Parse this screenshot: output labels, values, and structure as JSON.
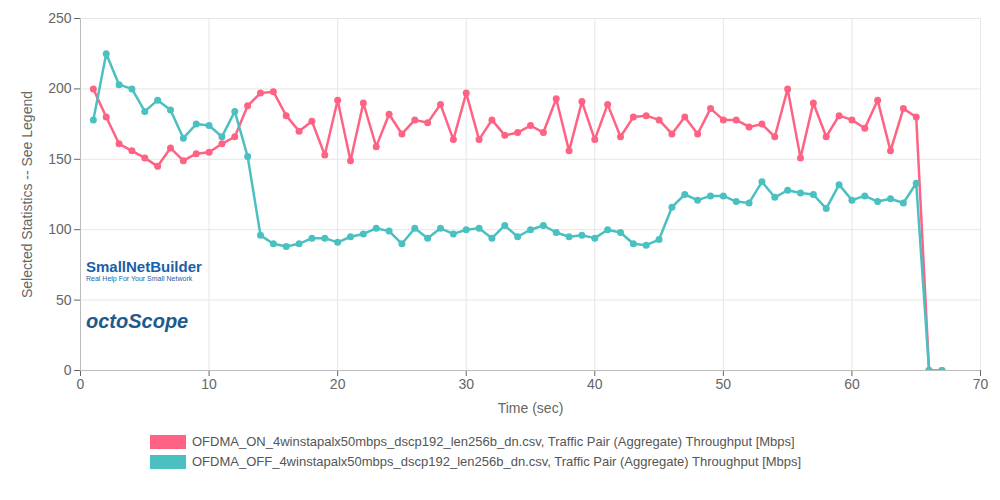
{
  "chart_data": {
    "type": "line",
    "xlabel": "Time (sec)",
    "ylabel": "Selected Statistics -- See Legend",
    "annotations": [
      "SmallNetBuilder",
      "Real Help For Your Small Network",
      "octoScope"
    ],
    "x": [
      1,
      2,
      3,
      4,
      5,
      6,
      7,
      8,
      9,
      10,
      11,
      12,
      13,
      14,
      15,
      16,
      17,
      18,
      19,
      20,
      21,
      22,
      23,
      24,
      25,
      26,
      27,
      28,
      29,
      30,
      31,
      32,
      33,
      34,
      35,
      36,
      37,
      38,
      39,
      40,
      41,
      42,
      43,
      44,
      45,
      46,
      47,
      48,
      49,
      50,
      51,
      52,
      53,
      54,
      55,
      56,
      57,
      58,
      59,
      60,
      61,
      62,
      63,
      64,
      65,
      66,
      67
    ],
    "series": [
      {
        "name": "OFDMA_ON_4winstapalx50mbps_dscp192_len256b_dn.csv, Traffic Pair (Aggregate) Throughput [Mbps]",
        "color": "#ff6384",
        "marker": "circle",
        "values": [
          200,
          180,
          161,
          156,
          151,
          145,
          158,
          149,
          154,
          155,
          161,
          166,
          188,
          197,
          198,
          181,
          170,
          177,
          153,
          192,
          149,
          190,
          159,
          182,
          168,
          178,
          176,
          189,
          164,
          197,
          164,
          178,
          167,
          169,
          174,
          169,
          193,
          156,
          191,
          164,
          189,
          166,
          180,
          181,
          178,
          168,
          180,
          168,
          186,
          178,
          178,
          173,
          175,
          166,
          200,
          151,
          190,
          166,
          181,
          178,
          172,
          192,
          156,
          186,
          180,
          0,
          0
        ]
      },
      {
        "name": "OFDMA_OFF_4winstapalx50mbps_dscp192_len256b_dn.csv, Traffic Pair (Aggregate) Throughput [Mbps]",
        "color": "#4bc0c0",
        "marker": "circle",
        "values": [
          178,
          225,
          203,
          200,
          184,
          192,
          185,
          165,
          175,
          174,
          166,
          184,
          152,
          96,
          90,
          88,
          90,
          94,
          94,
          91,
          95,
          97,
          101,
          99,
          90,
          101,
          94,
          101,
          97,
          100,
          101,
          94,
          103,
          95,
          100,
          103,
          98,
          95,
          96,
          94,
          100,
          98,
          90,
          89,
          93,
          116,
          125,
          121,
          124,
          124,
          120,
          119,
          134,
          123,
          128,
          126,
          125,
          115,
          132,
          121,
          124,
          120,
          122,
          119,
          133,
          0,
          0
        ]
      }
    ],
    "xlim": [
      0,
      70
    ],
    "xticks": [
      0,
      10,
      20,
      30,
      40,
      50,
      60,
      70
    ],
    "ylim": [
      0,
      250
    ],
    "yticks": [
      0,
      50,
      100,
      150,
      200,
      250
    ],
    "grid": true,
    "legend": "bottom"
  }
}
